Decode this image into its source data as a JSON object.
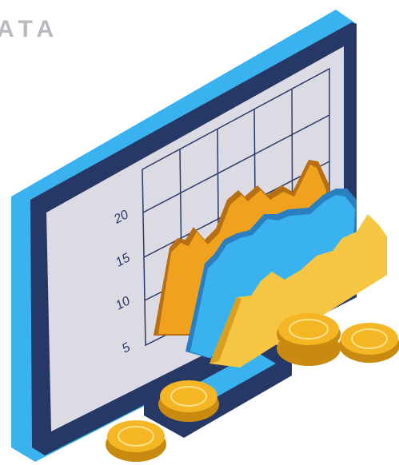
{
  "header": {
    "title": "ATA"
  },
  "axis_labels": [
    "20",
    "15",
    "10",
    "5"
  ]
}
